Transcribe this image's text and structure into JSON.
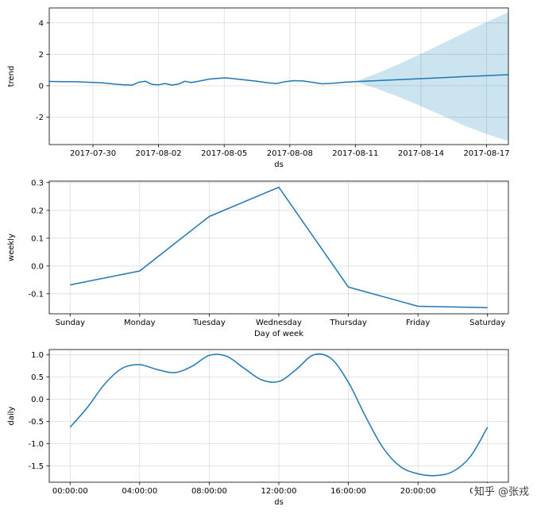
{
  "watermark": {
    "text": "知乎 @张戎"
  },
  "style": {
    "line_color": "#1f77b4",
    "band_color": "#0072b2",
    "band_opacity": 0.2,
    "grid_color": "#dcdcdc",
    "spine_color": "#000000",
    "text_color": "#000000",
    "background": "#ffffff"
  },
  "chart_data": [
    {
      "id": "trend",
      "type": "line",
      "title": "",
      "xlabel": "ds",
      "ylabel": "trend",
      "grid": true,
      "legend": "none",
      "smooth": false,
      "xlim": [
        0,
        21
      ],
      "ylim": [
        -3.75,
        4.95
      ],
      "x_tick_pos": [
        2,
        5,
        8,
        11,
        14,
        17,
        20
      ],
      "x_tick_labels": [
        "2017-07-30",
        "2017-08-02",
        "2017-08-05",
        "2017-08-08",
        "2017-08-11",
        "2017-08-14",
        "2017-08-17"
      ],
      "y_tick_pos": [
        -2,
        0,
        2,
        4
      ],
      "y_tick_labels": [
        "-2",
        "0",
        "2",
        "4"
      ],
      "x_start_date": "2017-07-28",
      "x_unit": "days since 2017-07-28",
      "line": {
        "x": [
          0,
          0.6,
          1.2,
          1.8,
          2.4,
          3.0,
          3.4,
          3.8,
          4.1,
          4.4,
          4.7,
          5.0,
          5.3,
          5.6,
          5.9,
          6.2,
          6.5,
          6.9,
          7.3,
          7.7,
          8.1,
          8.5,
          9.0,
          9.5,
          10.0,
          10.4,
          10.8,
          11.2,
          11.6,
          12.0,
          12.5,
          13.0,
          13.5,
          14.0,
          15,
          16,
          17,
          18,
          19,
          20,
          21
        ],
        "y": [
          0.27,
          0.26,
          0.25,
          0.22,
          0.18,
          0.1,
          0.06,
          0.04,
          0.22,
          0.28,
          0.08,
          0.06,
          0.14,
          0.04,
          0.1,
          0.28,
          0.2,
          0.3,
          0.42,
          0.47,
          0.5,
          0.44,
          0.36,
          0.28,
          0.18,
          0.14,
          0.26,
          0.32,
          0.3,
          0.22,
          0.12,
          0.16,
          0.22,
          0.26,
          0.32,
          0.38,
          0.45,
          0.51,
          0.58,
          0.64,
          0.7
        ]
      },
      "band": {
        "x": [
          14,
          15,
          16,
          17,
          18,
          19,
          20,
          21
        ],
        "upper": [
          0.26,
          0.78,
          1.38,
          2.02,
          2.7,
          3.38,
          4.05,
          4.68
        ],
        "lower": [
          0.26,
          -0.2,
          -0.72,
          -1.3,
          -1.92,
          -2.55,
          -3.08,
          -3.52
        ]
      }
    },
    {
      "id": "weekly",
      "type": "line",
      "title": "",
      "xlabel": "Day of week",
      "ylabel": "weekly",
      "grid": true,
      "legend": "none",
      "smooth": false,
      "xlim": [
        -0.3,
        6.3
      ],
      "ylim": [
        -0.172,
        0.305
      ],
      "x_tick_pos": [
        0,
        1,
        2,
        3,
        4,
        5,
        6
      ],
      "x_tick_labels": [
        "Sunday",
        "Monday",
        "Tuesday",
        "Wednesday",
        "Thursday",
        "Friday",
        "Saturday"
      ],
      "y_tick_pos": [
        -0.1,
        0.0,
        0.1,
        0.2,
        0.3
      ],
      "y_tick_labels": [
        "-0.1",
        "0.0",
        "0.1",
        "0.2",
        "0.3"
      ],
      "line": {
        "x": [
          0,
          1,
          2,
          3,
          4,
          5,
          6
        ],
        "y": [
          -0.068,
          -0.018,
          0.178,
          0.283,
          -0.076,
          -0.145,
          -0.15
        ]
      },
      "band": null
    },
    {
      "id": "daily",
      "type": "line",
      "title": "",
      "xlabel": "ds",
      "ylabel": "daily",
      "grid": true,
      "legend": "none",
      "smooth": true,
      "xlim": [
        -1.2,
        25.2
      ],
      "ylim": [
        -1.87,
        1.12
      ],
      "x_tick_pos": [
        0,
        4,
        8,
        12,
        16,
        20,
        24
      ],
      "x_tick_labels": [
        "00:00:00",
        "04:00:00",
        "08:00:00",
        "12:00:00",
        "16:00:00",
        "20:00:00",
        "00:00:00"
      ],
      "y_tick_pos": [
        -1.5,
        -1.0,
        -0.5,
        0.0,
        0.5,
        1.0
      ],
      "y_tick_labels": [
        "-1.5",
        "-1.0",
        "-0.5",
        "0.0",
        "0.5",
        "1.0"
      ],
      "x_unit": "hour of day",
      "line": {
        "x": [
          0,
          1,
          2,
          3,
          4,
          5,
          6,
          7,
          8,
          9,
          10,
          11,
          12,
          13,
          14,
          15,
          16,
          17,
          18,
          19,
          20,
          21,
          22,
          23,
          24
        ],
        "y": [
          -0.63,
          -0.18,
          0.35,
          0.7,
          0.78,
          0.67,
          0.6,
          0.74,
          0.99,
          0.97,
          0.7,
          0.44,
          0.4,
          0.67,
          1.0,
          0.92,
          0.38,
          -0.4,
          -1.1,
          -1.52,
          -1.68,
          -1.72,
          -1.63,
          -1.3,
          -0.63
        ]
      },
      "band": null
    }
  ]
}
